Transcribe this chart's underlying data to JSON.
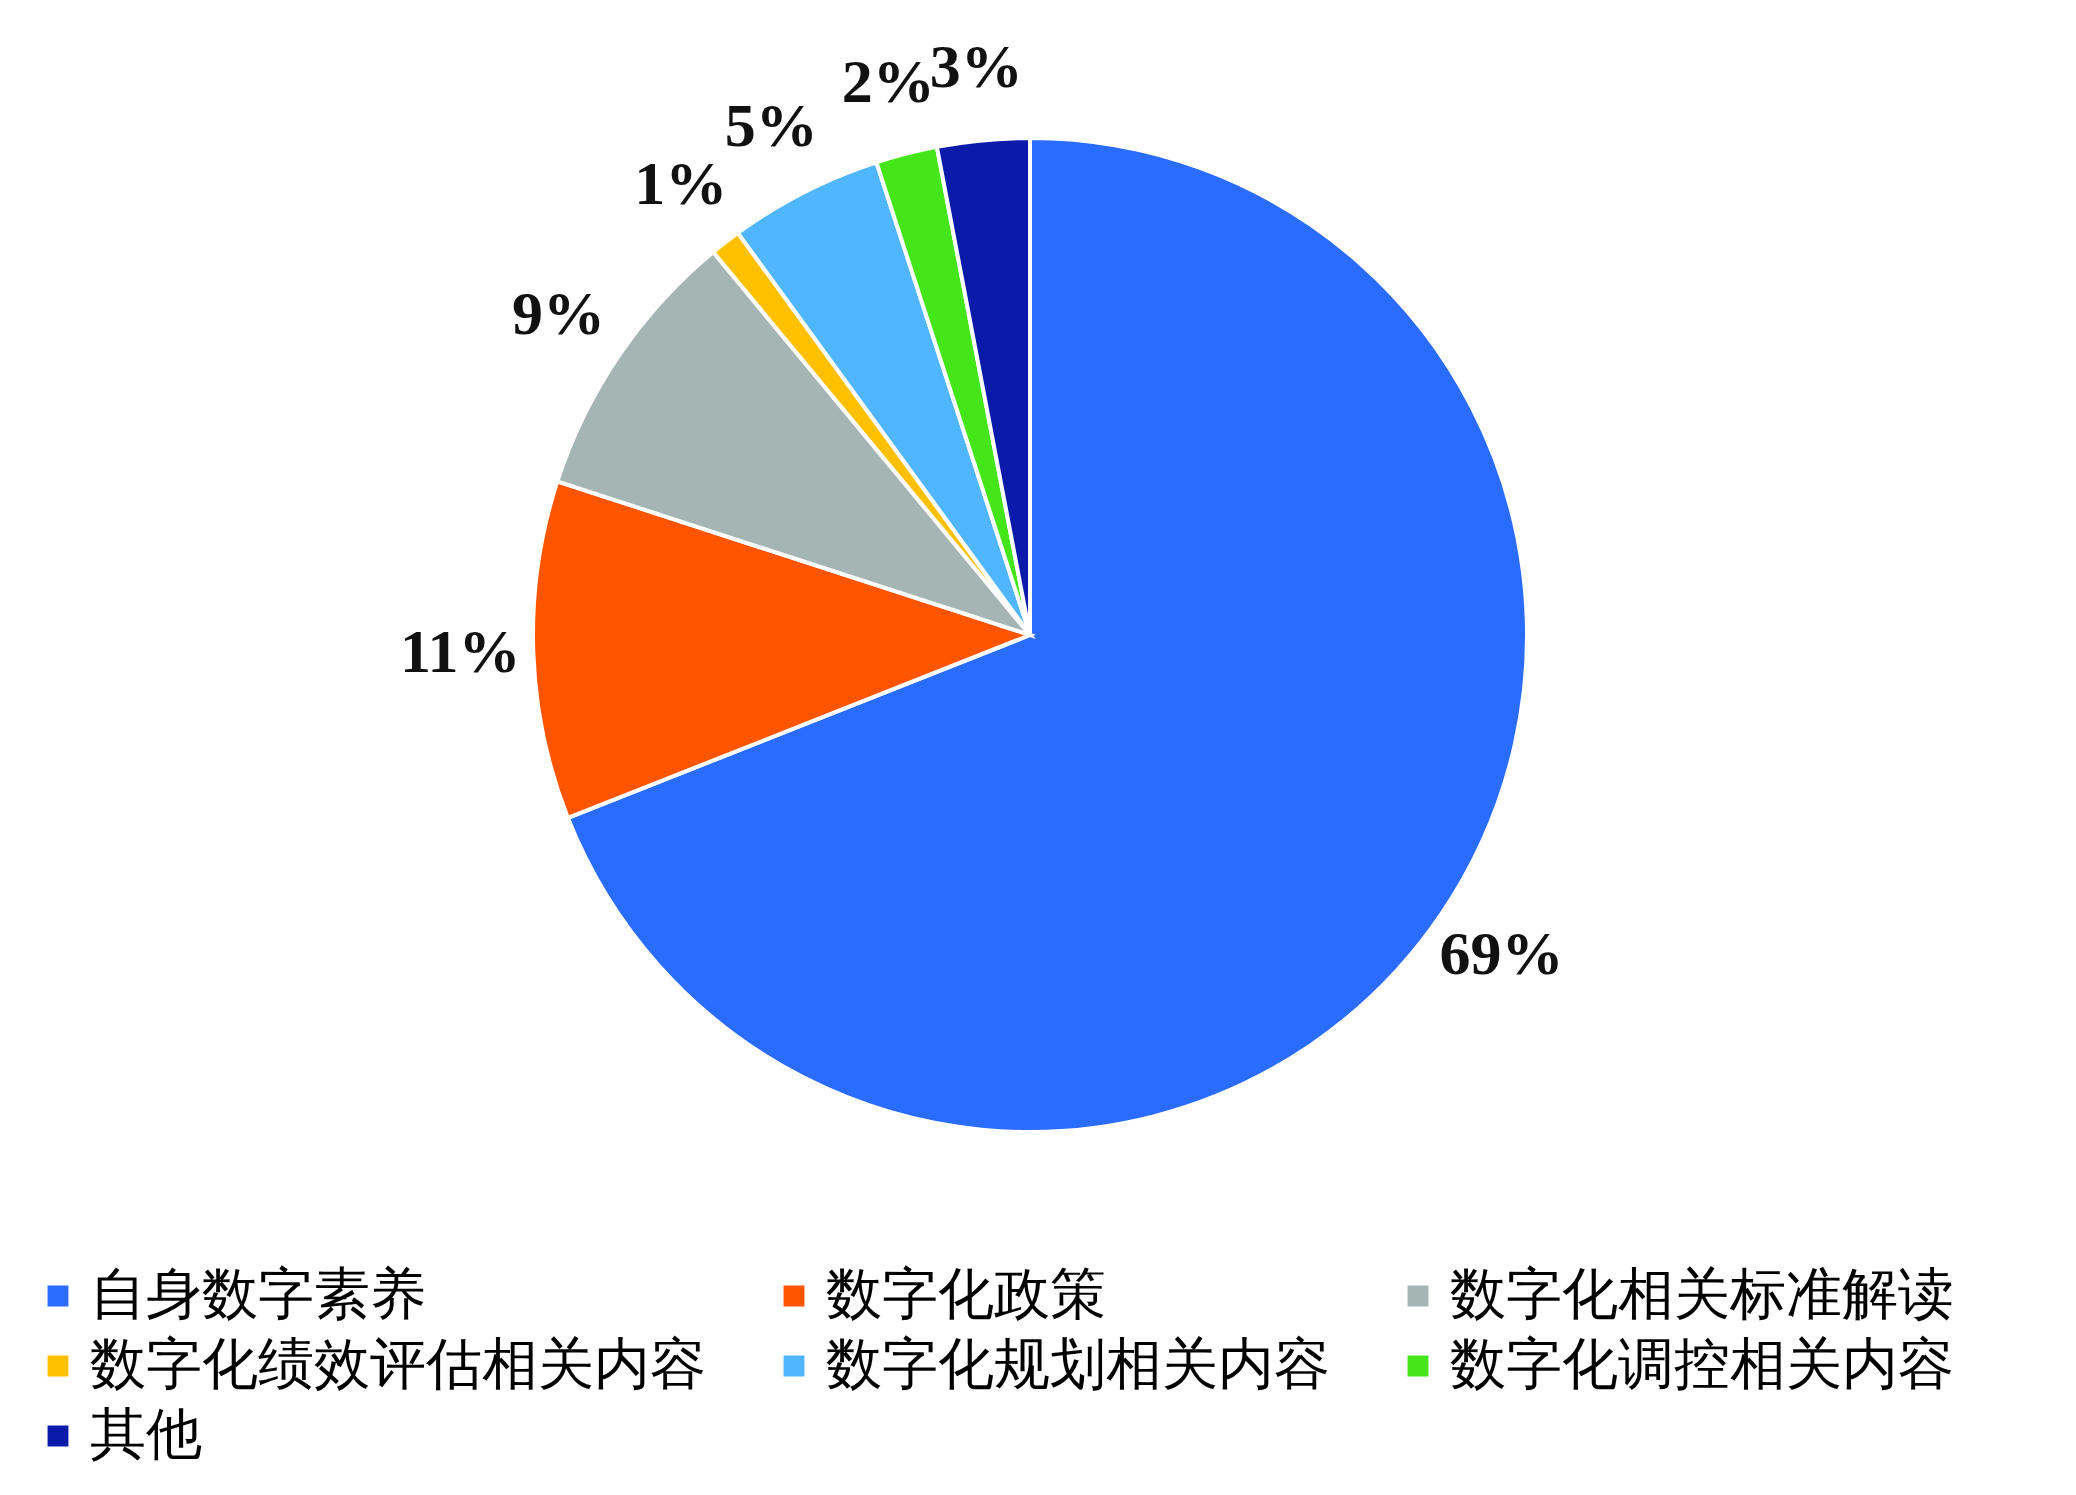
{
  "chart_data": {
    "type": "pie",
    "categories": [
      "自身数字素养",
      "数字化政策",
      "数字化相关标准解读",
      "数字化绩效评估相关内容",
      "数字化规划相关内容",
      "数字化调控相关内容",
      "其他"
    ],
    "values": [
      69,
      11,
      9,
      1,
      5,
      2,
      3
    ],
    "value_labels": [
      "69%",
      "11%",
      "9%",
      "1%",
      "5%",
      "2%",
      "3%"
    ],
    "colors": [
      "#2a6cff",
      "#ff5500",
      "#a5b5b3",
      "#ffc000",
      "#4fb6ff",
      "#44e61a",
      "#0b1aa8"
    ],
    "legend": "bottom"
  }
}
